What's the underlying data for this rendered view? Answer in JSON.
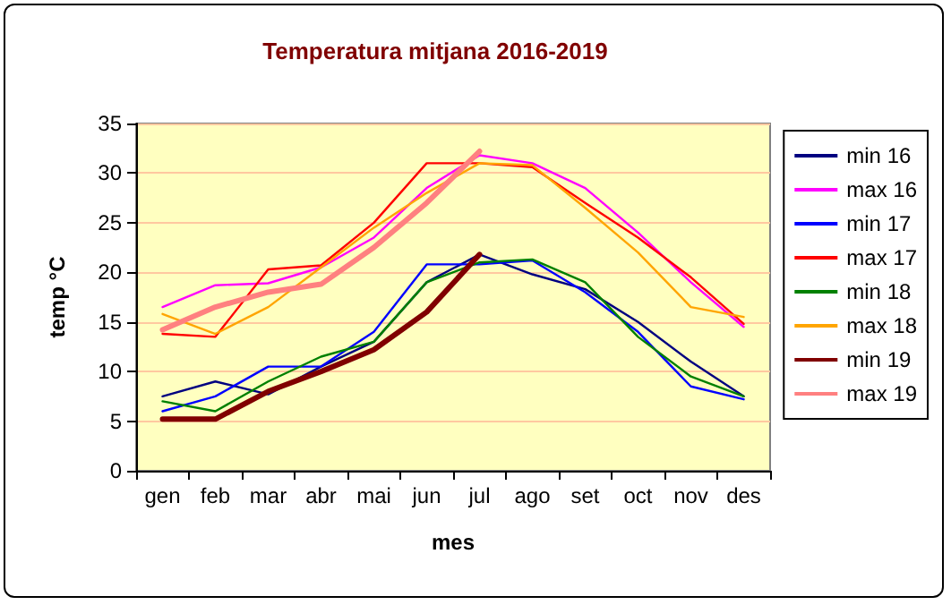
{
  "chart_data": {
    "type": "line",
    "title": "Temperatura mitjana 2016-2019",
    "xlabel": "mes",
    "ylabel": "temp °C",
    "categories": [
      "gen",
      "feb",
      "mar",
      "abr",
      "mai",
      "jun",
      "jul",
      "ago",
      "set",
      "oct",
      "nov",
      "des"
    ],
    "series": [
      {
        "name": "min 16",
        "color": "#000080",
        "values": [
          7.5,
          9,
          7.7,
          10.5,
          13,
          19,
          21.8,
          19.8,
          18.3,
          15,
          11,
          7.5
        ]
      },
      {
        "name": "max 16",
        "color": "#ff00ff",
        "values": [
          16.5,
          18.7,
          18.9,
          20.5,
          23.5,
          28.5,
          31.8,
          31,
          28.5,
          24,
          19,
          14.5
        ]
      },
      {
        "name": "min 17",
        "color": "#0000ff",
        "values": [
          6,
          7.5,
          10.5,
          10.5,
          14,
          20.8,
          20.8,
          21.2,
          18,
          14,
          8.5,
          7.2
        ]
      },
      {
        "name": "max 17",
        "color": "#ff0000",
        "values": [
          13.8,
          13.5,
          20.3,
          20.7,
          25,
          31,
          31,
          30.6,
          27,
          23.5,
          19.5,
          14.8
        ]
      },
      {
        "name": "min 18",
        "color": "#008000",
        "values": [
          7,
          6,
          9,
          11.5,
          13,
          19,
          21,
          21.3,
          19,
          13.5,
          9.5,
          7.5
        ]
      },
      {
        "name": "max 18",
        "color": "#ffa500",
        "values": [
          15.8,
          13.8,
          16.5,
          20.5,
          24.5,
          28,
          31,
          30.8,
          26.5,
          22,
          16.5,
          15.5
        ]
      },
      {
        "name": "min 19",
        "color": "#800000",
        "values": [
          5.2,
          5.2,
          8,
          10,
          12.2,
          16,
          21.8,
          null,
          null,
          null,
          null,
          null
        ]
      },
      {
        "name": "max 19",
        "color": "#ff8080",
        "values": [
          14.2,
          16.5,
          18,
          18.8,
          22.5,
          27,
          32.2,
          null,
          null,
          null,
          null,
          null
        ]
      }
    ],
    "ylim": [
      0,
      35
    ],
    "yticks": [
      0,
      5,
      10,
      15,
      20,
      25,
      30,
      35
    ],
    "grid": "y",
    "legend": "right",
    "marker": "none",
    "line_style": "solid"
  }
}
